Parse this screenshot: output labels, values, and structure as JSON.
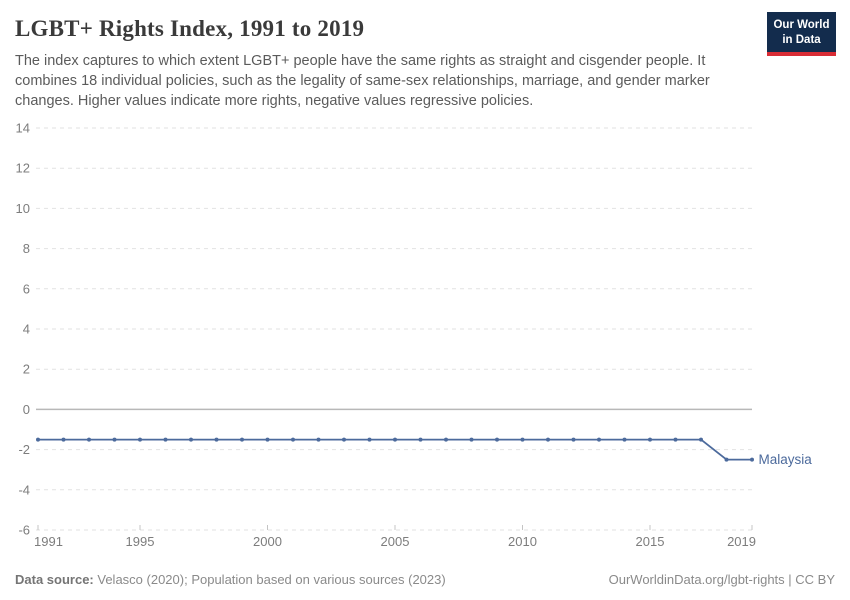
{
  "header": {
    "title": "LGBT+ Rights Index, 1991 to 2019",
    "subtitle": "The index captures to which extent LGBT+ people have the same rights as straight and cisgender people. It combines 18 individual policies, such as the legality of same-sex relationships, marriage, and gender marker changes. Higher values indicate more rights, negative values regressive policies.",
    "logo": {
      "line1": "Our World",
      "line2": "in Data"
    }
  },
  "chart_data": {
    "type": "line",
    "title": "LGBT+ Rights Index, 1991 to 2019",
    "xlabel": "",
    "ylabel": "",
    "xlim": [
      1991,
      2019
    ],
    "ylim": [
      -6,
      14
    ],
    "x_ticks": [
      1991,
      1995,
      2000,
      2005,
      2010,
      2015,
      2019
    ],
    "y_ticks": [
      14,
      12,
      10,
      8,
      6,
      4,
      2,
      0,
      -2,
      -4,
      -6
    ],
    "grid": "horizontal-dashed",
    "zero_line": true,
    "legend_position": "end-of-line-label",
    "series": [
      {
        "name": "Malaysia",
        "color": "#4c6a9c",
        "x": [
          1991,
          1992,
          1993,
          1994,
          1995,
          1996,
          1997,
          1998,
          1999,
          2000,
          2001,
          2002,
          2003,
          2004,
          2005,
          2006,
          2007,
          2008,
          2009,
          2010,
          2011,
          2012,
          2013,
          2014,
          2015,
          2016,
          2017,
          2018,
          2019
        ],
        "values": [
          -1.5,
          -1.5,
          -1.5,
          -1.5,
          -1.5,
          -1.5,
          -1.5,
          -1.5,
          -1.5,
          -1.5,
          -1.5,
          -1.5,
          -1.5,
          -1.5,
          -1.5,
          -1.5,
          -1.5,
          -1.5,
          -1.5,
          -1.5,
          -1.5,
          -1.5,
          -1.5,
          -1.5,
          -1.5,
          -1.5,
          -1.5,
          -2.5,
          -2.5
        ]
      }
    ]
  },
  "footer": {
    "source_label": "Data source:",
    "source_text": "Velasco (2020); Population based on various sources (2023)",
    "license_text": "OurWorldinData.org/lgbt-rights | CC BY"
  },
  "colors": {
    "line": "#4c6a9c",
    "grid": "#e2e2e2",
    "zero_line": "#b8b8b8",
    "axis_tick": "#c4c4c4",
    "tick_label": "#7d7d7d",
    "title": "#3a3a3a",
    "subtitle": "#5b5b5b",
    "footer": "#8a8a8a",
    "logo_bg": "#132c4d",
    "logo_bar": "#d92c35"
  }
}
